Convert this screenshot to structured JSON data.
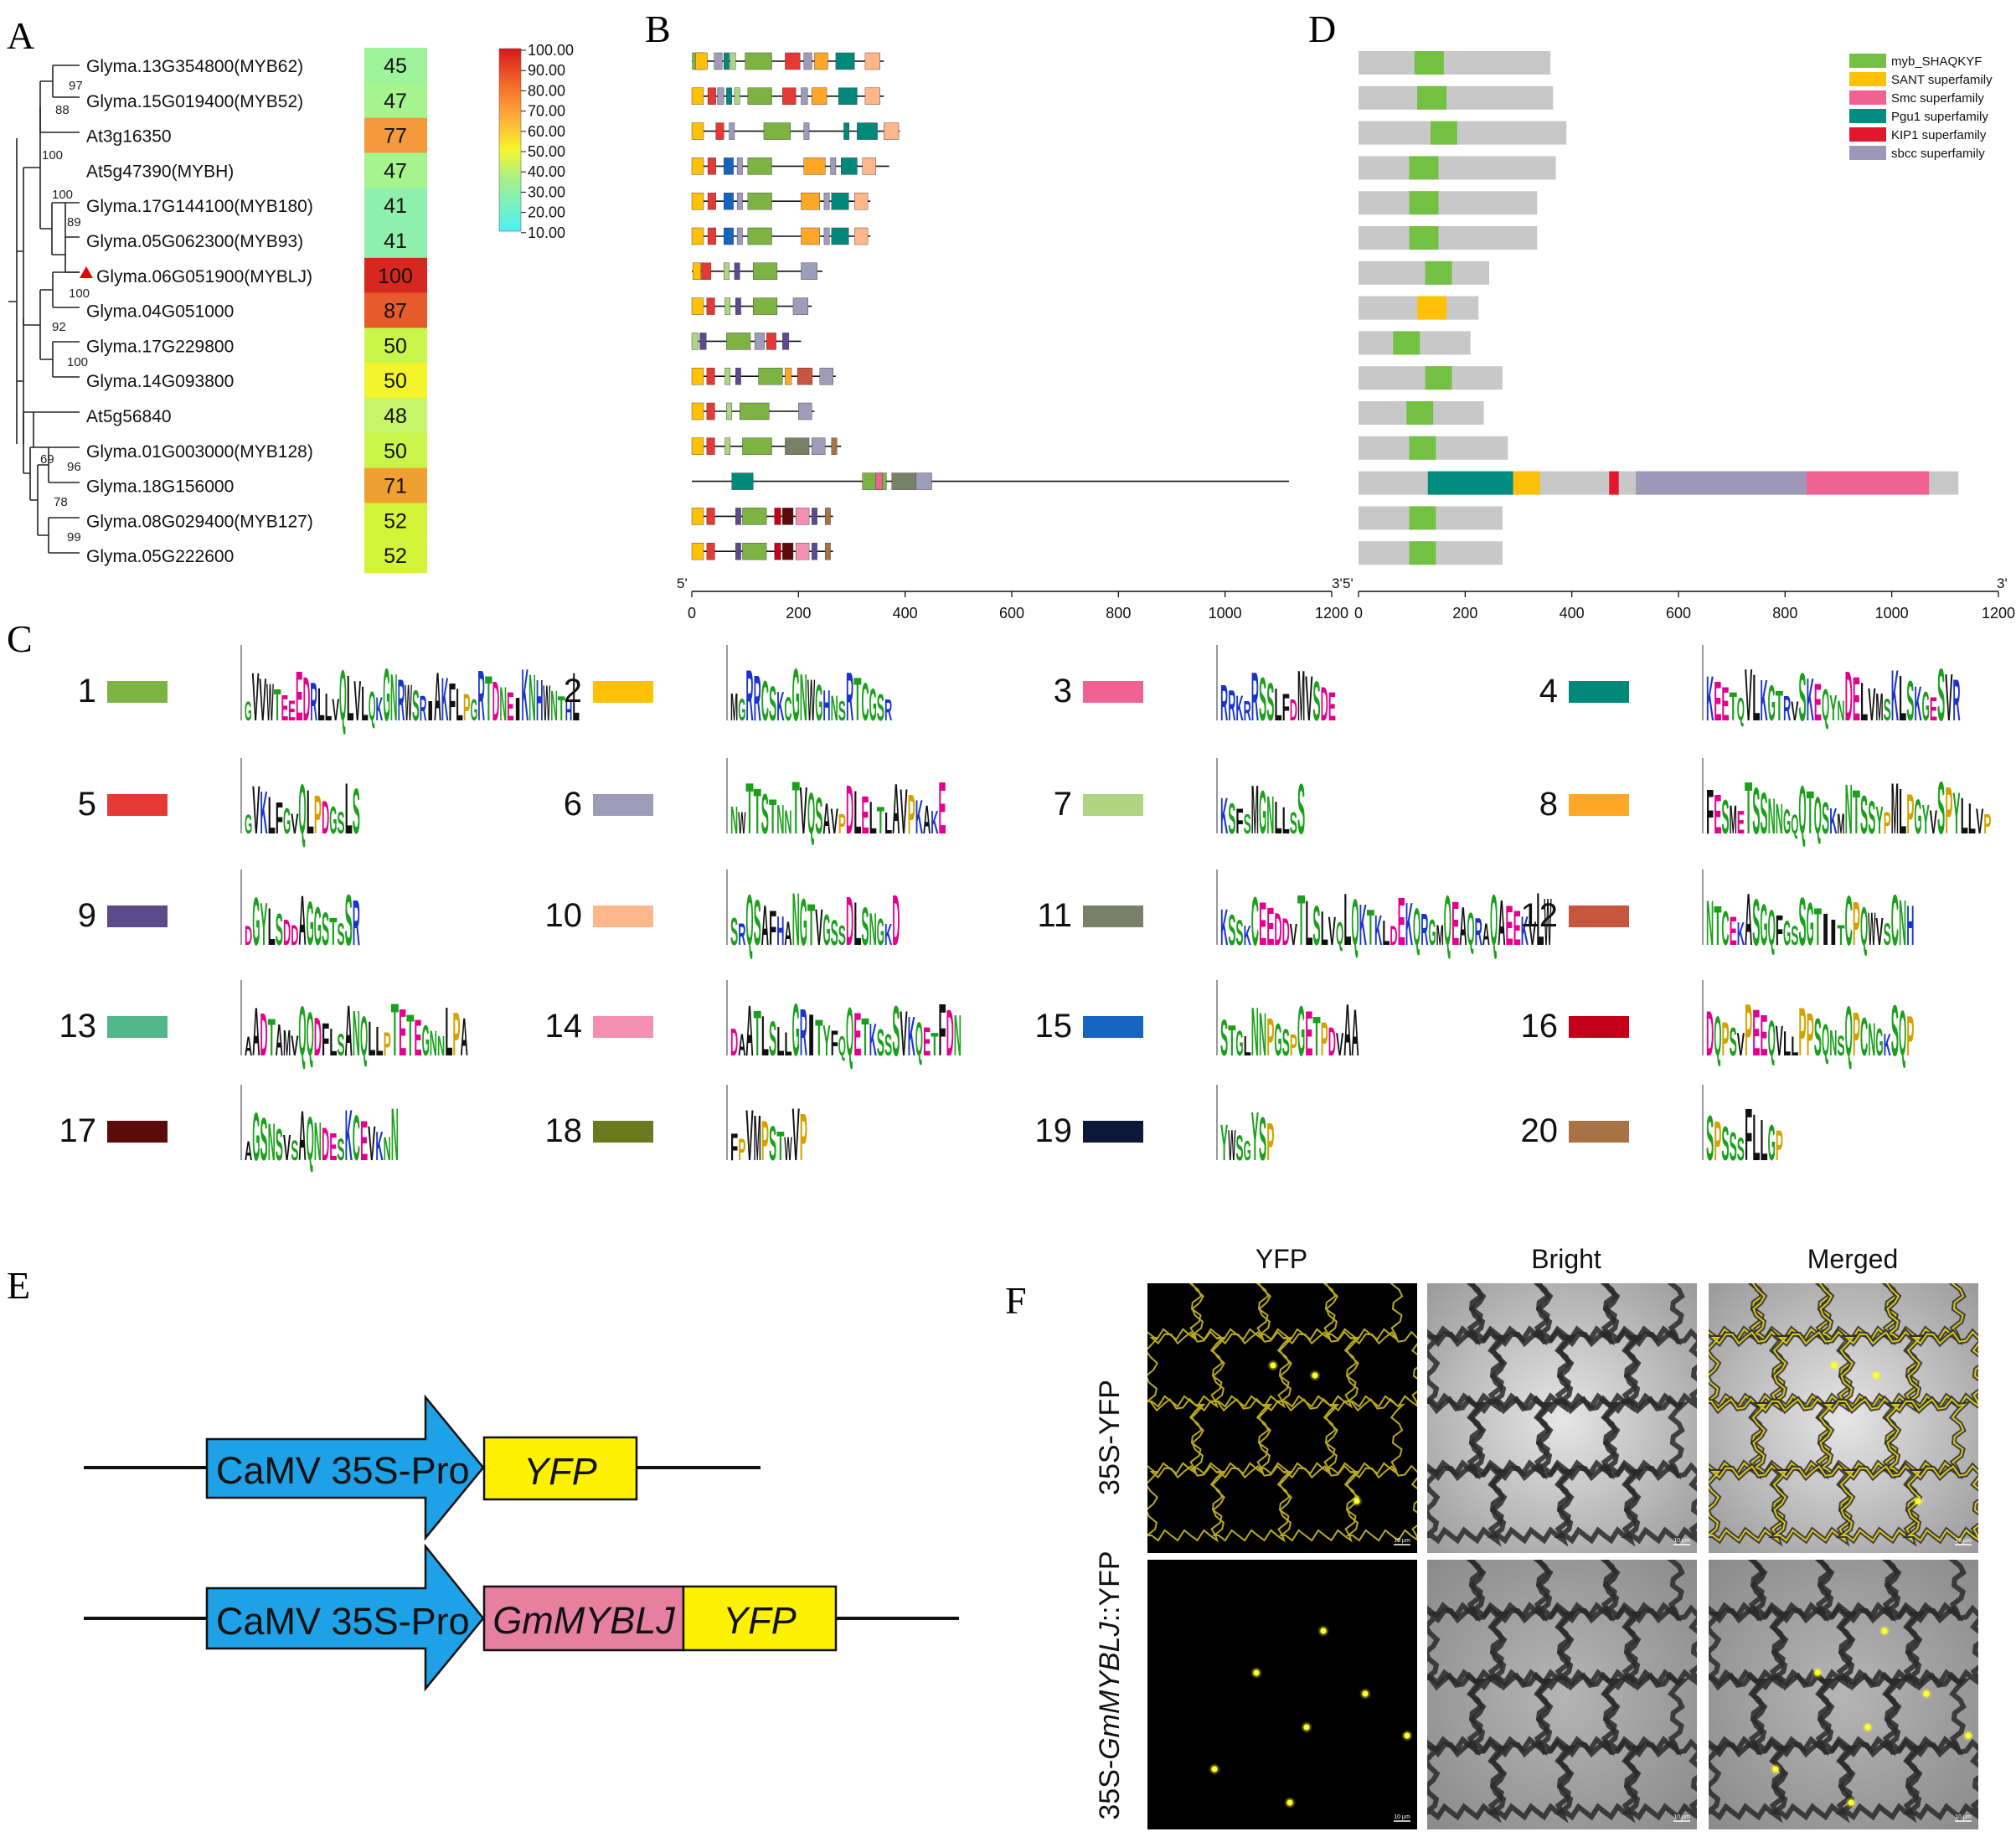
{
  "panels": {
    "A": {
      "letter": "A",
      "genes": [
        {
          "name": "Glyma.13G354800(MYB62)",
          "value": 45,
          "color": "#9ef29a"
        },
        {
          "name": "Glyma.15G019400(MYB52)",
          "value": 47,
          "color": "#a6f48e"
        },
        {
          "name": "At3g16350",
          "value": 77,
          "color": "#f39a3c"
        },
        {
          "name": "At5g47390(MYBH)",
          "value": 47,
          "color": "#a6f48e"
        },
        {
          "name": "Glyma.17G144100(MYB180)",
          "value": 41,
          "color": "#8ff0ad"
        },
        {
          "name": "Glyma.05G062300(MYB93)",
          "value": 41,
          "color": "#8ff0ad"
        },
        {
          "name": "Glyma.06G051900(MYBLJ)",
          "value": 100,
          "color": "#d6281f",
          "marked": true
        },
        {
          "name": "Glyma.04G051000",
          "value": 87,
          "color": "#e75a2b"
        },
        {
          "name": "Glyma.17G229800",
          "value": 50,
          "color": "#c9f54b"
        },
        {
          "name": "Glyma.14G093800",
          "value": 50,
          "color": "#f4f42c"
        },
        {
          "name": "At5g56840",
          "value": 48,
          "color": "#c6f46a"
        },
        {
          "name": "Glyma.01G003000(MYB128)",
          "value": 50,
          "color": "#c9f54b"
        },
        {
          "name": "Glyma.18G156000",
          "value": 71,
          "color": "#f0a030"
        },
        {
          "name": "Glyma.08G029400(MYB127)",
          "value": 52,
          "color": "#d4f43a"
        },
        {
          "name": "Glyma.05G222600",
          "value": 52,
          "color": "#d4f43a"
        }
      ],
      "bootstraps": [
        "97",
        "88",
        "100",
        "100",
        "89",
        "100",
        "92",
        "100",
        "69",
        "96",
        "78",
        "99"
      ],
      "colorbar": {
        "ticks": [
          "100.00",
          "90.00",
          "80.00",
          "70.00",
          "60.00",
          "50.00",
          "40.00",
          "30.00",
          "20.00",
          "10.00"
        ]
      }
    },
    "B": {
      "letter": "B",
      "axis": {
        "ticks": [
          "0",
          "200",
          "400",
          "600",
          "800",
          "1000",
          "1200"
        ],
        "start_label": "5'",
        "end_label": "3'"
      }
    },
    "C": {
      "letter": "C",
      "motifs": [
        {
          "num": "1",
          "color": "#7cb342",
          "logo": "GVVWTEEEDRLLVQLVLQKGNRWSRIAKFLPGRTDNEIKNHWNTHL"
        },
        {
          "num": "2",
          "color": "#ffc107",
          "logo": "MGRRCSKCGNWGHNSRTCGSR"
        },
        {
          "num": "3",
          "color": "#f06292",
          "logo": "RRKRRSSLFDMVSDE"
        },
        {
          "num": "4",
          "color": "#00897b",
          "logo": "KEETQVLKGTRVSKEQYNDELVMSKLSKGESVR"
        },
        {
          "num": "5",
          "color": "#e53935",
          "logo": "GVKLFGVQLPDGSLS"
        },
        {
          "num": "6",
          "color": "#9e9cb8",
          "logo": "NWTTSTNNTVQSAVPDLELTLAVPKAKE"
        },
        {
          "num": "7",
          "color": "#aed581",
          "logo": "KSFSMGNLLSS"
        },
        {
          "num": "8",
          "color": "#ffa726",
          "logo": "FESMETSSNNGQQTQSKMNTSSYPMLPGYVSPYLLVP"
        },
        {
          "num": "9",
          "color": "#5c4a8a",
          "logo": "DGYLSDDAGGSTSSR"
        },
        {
          "num": "10",
          "color": "#ffb68a",
          "logo": "SRQSAFHANGTVGSSDLSNGKD"
        },
        {
          "num": "11",
          "color": "#7a8068",
          "logo": "KSSKCEEDDVTLSLVQLQKTKLDEKQRGMQEAQRAQAEEKVLW"
        },
        {
          "num": "12",
          "color": "#c8553d",
          "logo": "NTCEKASGQFGSSGTIITCPQWVSCNH"
        },
        {
          "num": "13",
          "color": "#52b788",
          "logo": "AADTAMVQQDFLSANQLLPTETEGNNLPA"
        },
        {
          "num": "14",
          "color": "#f48fb1",
          "logo": "DAATLSLLGRITYFQQETKSSSVKQETFDN"
        },
        {
          "num": "15",
          "color": "#1565c0",
          "logo": "STGLNNPGSPGETPDVAA"
        },
        {
          "num": "16",
          "color": "#c4001a",
          "logo": "DQPSVPEEQVLLPPSQNSQPCNGKSQP"
        },
        {
          "num": "17",
          "color": "#5d0a0a",
          "logo": "AGSNSVSAQNDESKCEVKNN"
        },
        {
          "num": "18",
          "color": "#6b7a1f",
          "logo": "FPVMPSTWVP"
        },
        {
          "num": "19",
          "color": "#0d1838",
          "logo": "YWSGYSP"
        },
        {
          "num": "20",
          "color": "#a87344",
          "logo": "SPSSSFLLGP"
        }
      ]
    },
    "D": {
      "letter": "D",
      "axis": {
        "ticks": [
          "0",
          "200",
          "400",
          "600",
          "800",
          "1000",
          "1200"
        ],
        "start_label": "5'",
        "end_label": "3'"
      },
      "legend": [
        {
          "label": "myb_SHAQKYF",
          "color": "#74c043"
        },
        {
          "label": "SANT superfamily",
          "color": "#ffc107"
        },
        {
          "label": "Smc superfamily",
          "color": "#f06292"
        },
        {
          "label": "Pgu1 superfamily",
          "color": "#008c7e"
        },
        {
          "label": "KIP1 superfamily",
          "color": "#e2172e"
        },
        {
          "label": "sbcc superfamily",
          "color": "#9e98b8"
        }
      ]
    },
    "E": {
      "letter": "E",
      "constructs": [
        {
          "promoter": "CaMV 35S-Pro",
          "fusion": "",
          "reporter": "YFP"
        },
        {
          "promoter": "CaMV 35S-Pro",
          "fusion": "GmMYBLJ",
          "reporter": "YFP"
        }
      ]
    },
    "F": {
      "letter": "F",
      "columns": [
        "YFP",
        "Bright",
        "Merged"
      ],
      "rows": [
        {
          "prefix": "35S-YFP",
          "gene": "",
          "suffix": ""
        },
        {
          "prefix": "35S-",
          "gene": "GmMYBLJ",
          "suffix": "::YFP"
        }
      ],
      "scale_label": "10 μm"
    }
  },
  "colors": {
    "promoter": "#1ea1e6",
    "gene": "#e67fa0",
    "reporter": "#fff200",
    "grey_protein": "#c8c8c8"
  }
}
